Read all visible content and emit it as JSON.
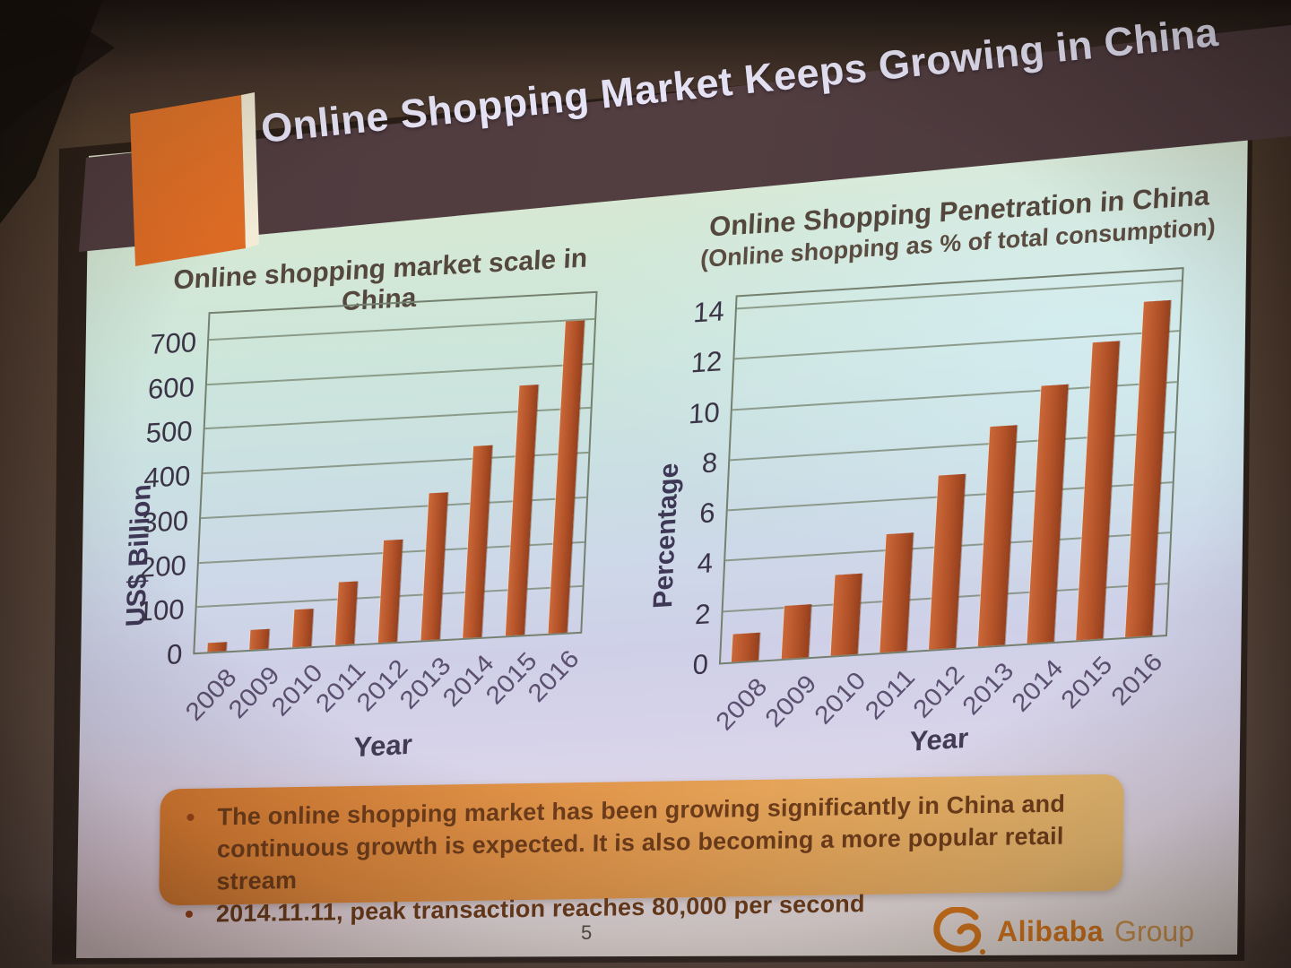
{
  "slide": {
    "title": "Online Shopping Market Keeps Growing in China",
    "page_number": "5",
    "logo": {
      "brand": "Alibaba",
      "suffix": "Group",
      "icon": "alibaba-face-icon"
    },
    "bullets": [
      {
        "text": "The online shopping market has been growing significantly in China and continuous growth is expected. It is also becoming a more popular retail stream"
      },
      {
        "text": "2014.11.11, peak transaction reaches 80,000 per second"
      }
    ]
  },
  "colors": {
    "bar": "#b35228",
    "header_band": "#4f3b3e",
    "accent_rectangle": "#e2702b",
    "title_text": "#e6e4f6",
    "callout_gradient_left": "#db7c31",
    "callout_gradient_right": "#eabc72",
    "callout_text": "#6e3d1b",
    "logo_orange": "#d8781d",
    "gridline": "#76836e"
  },
  "chart_data": [
    {
      "type": "bar",
      "title": "Online shopping market scale in China",
      "xlabel": "Year",
      "ylabel": "US$ Billion",
      "categories": [
        "2008",
        "2009",
        "2010",
        "2011",
        "2012",
        "2013",
        "2014",
        "2015",
        "2016"
      ],
      "values": [
        20,
        45,
        85,
        140,
        230,
        330,
        430,
        560,
        700
      ],
      "ylim": [
        0,
        760
      ],
      "yticks": [
        0,
        100,
        200,
        300,
        400,
        500,
        600,
        700
      ],
      "grid": true,
      "legend": "none",
      "bar_color": "#b35228",
      "bar_width_frac": 0.43
    },
    {
      "type": "bar",
      "title": "Online Shopping Penetration in China",
      "subtitle": "(Online shopping as % of total consumption)",
      "xlabel": "Year",
      "ylabel": "Percentage",
      "categories": [
        "2008",
        "2009",
        "2010",
        "2011",
        "2012",
        "2013",
        "2014",
        "2015",
        "2016"
      ],
      "values": [
        1.1,
        2.1,
        3.2,
        4.7,
        6.9,
        8.7,
        10.2,
        11.8,
        13.3
      ],
      "ylim": [
        0,
        14.5
      ],
      "yticks": [
        0,
        2,
        4,
        6,
        8,
        10,
        12,
        14
      ],
      "grid": true,
      "legend": "none",
      "bar_color": "#b35228",
      "bar_width_frac": 0.55
    }
  ]
}
